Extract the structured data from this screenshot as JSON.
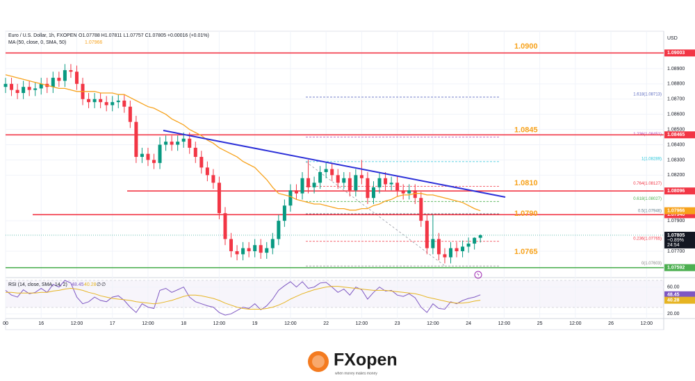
{
  "header": {
    "symbol": "Euro / U.S. Dollar, 1h, FXOPEN",
    "ohlc": "O1.07788 H1.07811 L1.07757 C1.07805 +0.00016 (+0.01%)",
    "currency": "USD"
  },
  "chart_data": {
    "type": "candlestick",
    "up_color": "#089981",
    "down_color": "#f23645",
    "ylim": [
      1.07563,
      1.09146
    ],
    "yticks": [
      {
        "value": 1.089,
        "label": "1.08900"
      },
      {
        "value": 1.088,
        "label": "1.08800"
      },
      {
        "value": 1.087,
        "label": "1.08700"
      },
      {
        "value": 1.086,
        "label": "1.08600"
      },
      {
        "value": 1.085,
        "label": "1.08500"
      },
      {
        "value": 1.084,
        "label": "1.08400"
      },
      {
        "value": 1.083,
        "label": "1.08300"
      },
      {
        "value": 1.082,
        "label": "1.08200"
      },
      {
        "value": 1.079,
        "label": "1.07900"
      },
      {
        "value": 1.077,
        "label": "1.07700"
      }
    ],
    "grid": true,
    "xlabels": [
      "00",
      "16",
      "12:00",
      "17",
      "12:00",
      "18",
      "12:00",
      "19",
      "12:00",
      "22",
      "12:00",
      "23",
      "12:00",
      "24",
      "12:00",
      "25",
      "12:00",
      "26",
      "12:00"
    ],
    "candles": [
      [
        1.0878,
        1.0884,
        1.0874,
        1.088
      ],
      [
        1.088,
        1.0884,
        1.0872,
        1.0876
      ],
      [
        1.0876,
        1.088,
        1.087,
        1.0874
      ],
      [
        1.0874,
        1.0882,
        1.087,
        1.0878
      ],
      [
        1.0878,
        1.0882,
        1.0872,
        1.0876
      ],
      [
        1.0876,
        1.0881,
        1.0872,
        1.0877
      ],
      [
        1.0877,
        1.0884,
        1.0873,
        1.088
      ],
      [
        1.088,
        1.0884,
        1.0874,
        1.0878
      ],
      [
        1.0878,
        1.0888,
        1.0874,
        1.0884
      ],
      [
        1.0884,
        1.0888,
        1.0878,
        1.0882
      ],
      [
        1.0882,
        1.0893,
        1.0878,
        1.0889
      ],
      [
        1.0889,
        1.0893,
        1.0884,
        1.0888
      ],
      [
        1.0888,
        1.0892,
        1.0876,
        1.088
      ],
      [
        1.088,
        1.0884,
        1.0866,
        1.087
      ],
      [
        1.087,
        1.0874,
        1.0864,
        1.0868
      ],
      [
        1.0868,
        1.0874,
        1.0864,
        1.087
      ],
      [
        1.087,
        1.0874,
        1.0864,
        1.0868
      ],
      [
        1.0868,
        1.0872,
        1.0862,
        1.0866
      ],
      [
        1.0866,
        1.0872,
        1.0862,
        1.0868
      ],
      [
        1.0868,
        1.0873,
        1.0864,
        1.0869
      ],
      [
        1.0869,
        1.0873,
        1.0861,
        1.0865
      ],
      [
        1.0865,
        1.0869,
        1.0851,
        1.0855
      ],
      [
        1.0855,
        1.0859,
        1.0828,
        1.0832
      ],
      [
        1.0832,
        1.0838,
        1.0828,
        1.0834
      ],
      [
        1.0834,
        1.0838,
        1.0826,
        1.083
      ],
      [
        1.083,
        1.0834,
        1.0824,
        1.0828
      ],
      [
        1.0828,
        1.0845,
        1.0824,
        1.084
      ],
      [
        1.084,
        1.0846,
        1.0836,
        1.0842
      ],
      [
        1.0842,
        1.0846,
        1.0836,
        1.084
      ],
      [
        1.084,
        1.0846,
        1.0836,
        1.0842
      ],
      [
        1.0842,
        1.0848,
        1.0838,
        1.0844
      ],
      [
        1.0844,
        1.0848,
        1.0834,
        1.0838
      ],
      [
        1.0838,
        1.0842,
        1.0828,
        1.0832
      ],
      [
        1.0832,
        1.0836,
        1.0821,
        1.0825
      ],
      [
        1.0825,
        1.0829,
        1.0816,
        1.082
      ],
      [
        1.082,
        1.0824,
        1.0811,
        1.0815
      ],
      [
        1.0815,
        1.0819,
        1.0791,
        1.0795
      ],
      [
        1.0795,
        1.0799,
        1.0774,
        1.0778
      ],
      [
        1.0778,
        1.0782,
        1.0766,
        1.077
      ],
      [
        1.077,
        1.0774,
        1.0764,
        1.0768
      ],
      [
        1.0768,
        1.0776,
        1.0764,
        1.0772
      ],
      [
        1.0772,
        1.0776,
        1.0766,
        1.077
      ],
      [
        1.077,
        1.0778,
        1.0766,
        1.0774
      ],
      [
        1.0774,
        1.0778,
        1.0765,
        1.0769
      ],
      [
        1.0769,
        1.0776,
        1.0765,
        1.0772
      ],
      [
        1.0772,
        1.0782,
        1.0768,
        1.0778
      ],
      [
        1.0778,
        1.0794,
        1.0774,
        1.079
      ],
      [
        1.079,
        1.0804,
        1.0786,
        1.08
      ],
      [
        1.08,
        1.0814,
        1.0796,
        1.081
      ],
      [
        1.081,
        1.0814,
        1.0804,
        1.0808
      ],
      [
        1.0808,
        1.0822,
        1.0804,
        1.0818
      ],
      [
        1.0818,
        1.083,
        1.0808,
        1.0812
      ],
      [
        1.0812,
        1.0819,
        1.0808,
        1.0815
      ],
      [
        1.0815,
        1.0826,
        1.0811,
        1.0822
      ],
      [
        1.0822,
        1.0828,
        1.0818,
        1.0824
      ],
      [
        1.0824,
        1.0828,
        1.0816,
        1.082
      ],
      [
        1.082,
        1.0824,
        1.0811,
        1.0815
      ],
      [
        1.0815,
        1.0822,
        1.0811,
        1.0818
      ],
      [
        1.0818,
        1.0822,
        1.0806,
        1.081
      ],
      [
        1.081,
        1.0824,
        1.0806,
        1.082
      ],
      [
        1.082,
        1.083,
        1.0814,
        1.0818
      ],
      [
        1.0818,
        1.0822,
        1.0801,
        1.0805
      ],
      [
        1.0805,
        1.0816,
        1.0801,
        1.0812
      ],
      [
        1.0812,
        1.0822,
        1.0808,
        1.0818
      ],
      [
        1.0818,
        1.0822,
        1.081,
        1.0814
      ],
      [
        1.0814,
        1.0819,
        1.081,
        1.0815
      ],
      [
        1.0815,
        1.0819,
        1.0806,
        1.081
      ],
      [
        1.081,
        1.0814,
        1.0804,
        1.0808
      ],
      [
        1.0808,
        1.0814,
        1.0804,
        1.081
      ],
      [
        1.081,
        1.0814,
        1.0801,
        1.0805
      ],
      [
        1.0805,
        1.0809,
        1.0786,
        1.079
      ],
      [
        1.079,
        1.0794,
        1.0768,
        1.0772
      ],
      [
        1.0772,
        1.0794,
        1.0768,
        1.0778
      ],
      [
        1.0778,
        1.0782,
        1.0764,
        1.0768
      ],
      [
        1.0768,
        1.0772,
        1.0762,
        1.0766
      ],
      [
        1.0766,
        1.0776,
        1.0762,
        1.0772
      ],
      [
        1.0772,
        1.0776,
        1.0766,
        1.077
      ],
      [
        1.077,
        1.0777,
        1.0766,
        1.0773
      ],
      [
        1.0773,
        1.0779,
        1.0769,
        1.0775
      ],
      [
        1.0775,
        1.07792,
        1.07711,
        1.07788
      ],
      [
        1.07788,
        1.07811,
        1.07757,
        1.07805
      ]
    ],
    "ma": {
      "name": "MA (50, close, 0, SMA, 50)",
      "color": "#f7a21b",
      "values": [
        1.0886,
        1.0885,
        1.0884,
        1.0883,
        1.0882,
        1.0881,
        1.088,
        1.0879,
        1.0878,
        1.0877,
        1.0877,
        1.0876,
        1.0875,
        1.0875,
        1.0875,
        1.0875,
        1.0874,
        1.0874,
        1.0874,
        1.0873,
        1.0873,
        1.0871,
        1.0869,
        1.0867,
        1.0865,
        1.0864,
        1.0862,
        1.086,
        1.0857,
        1.0855,
        1.0853,
        1.085,
        1.0848,
        1.0846,
        1.0843,
        1.0841,
        1.0838,
        1.0836,
        1.0834,
        1.0832,
        1.0829,
        1.0827,
        1.0825,
        1.0821,
        1.0817,
        1.0812,
        1.0808,
        1.0807,
        1.0806,
        1.0804,
        1.0803,
        1.0802,
        1.0801,
        1.0801,
        1.08,
        1.0799,
        1.0798,
        1.0798,
        1.0797,
        1.0797,
        1.0798,
        1.0798,
        1.08,
        1.0801,
        1.0803,
        1.0804,
        1.0806,
        1.0807,
        1.0807,
        1.0808,
        1.0808,
        1.0807,
        1.0807,
        1.0806,
        1.0805,
        1.0804,
        1.0803,
        1.0802,
        1.08,
        1.0798,
        1.07966
      ]
    },
    "levels": [
      {
        "value": 1.09003,
        "label": "1.09003",
        "color": "#f23645"
      },
      {
        "value": 1.08465,
        "label": "1.08465",
        "color": "#f23645"
      },
      {
        "value": 1.08096,
        "label": "1.08096",
        "color": "#f23645"
      },
      {
        "value": 1.0794,
        "label": "1.07940",
        "color": "#f23645"
      },
      {
        "value": 1.07592,
        "label": "1.07592",
        "color": "#4caf50"
      }
    ],
    "annotation_color": "#f7a21b",
    "annotations": [
      {
        "value": 1.09,
        "label": "1.0900"
      },
      {
        "value": 1.0845,
        "label": "1.0845"
      },
      {
        "value": 1.081,
        "label": "1.0810"
      },
      {
        "value": 1.079,
        "label": "1.0790"
      },
      {
        "value": 1.0765,
        "label": "1.0765"
      }
    ],
    "fib": [
      {
        "value": 1.08713,
        "label": "1.618(1.08713)",
        "color": "#5c6bc0"
      },
      {
        "value": 1.08451,
        "label": "1.236(1.08451)",
        "color": "#ab47bc"
      },
      {
        "value": 1.08289,
        "label": "1(1.08289)",
        "color": "#26c6da"
      },
      {
        "value": 1.08127,
        "label": "0.764(1.08127)",
        "color": "#f23645"
      },
      {
        "value": 1.08027,
        "label": "0.618(1.08027)",
        "color": "#4caf50"
      },
      {
        "value": 1.07946,
        "label": "0.5(1.07946)",
        "color": "#607d8b"
      },
      {
        "value": 1.07765,
        "label": "0.236(1.07765)",
        "color": "#f23645"
      },
      {
        "value": 1.07603,
        "label": "0(1.07603)",
        "color": "#888888"
      }
    ],
    "last": {
      "change": "−0.89%",
      "countdown": "24:54"
    }
  },
  "rsi": {
    "type": "line",
    "name": "RSI (14, close, SMA, 14, 2)",
    "na_labels": [
      "∅",
      "∅"
    ],
    "ylim": [
      14,
      71
    ],
    "yticks": [
      {
        "value": 60,
        "label": "60.00"
      },
      {
        "value": 20,
        "label": "20.00"
      }
    ],
    "series": [
      {
        "color": "#7e57c2",
        "values": [
          55,
          48,
          45,
          56,
          50,
          52,
          58,
          52,
          64,
          60,
          70,
          66,
          45,
          35,
          38,
          45,
          40,
          38,
          45,
          47,
          40,
          30,
          22,
          35,
          30,
          28,
          55,
          58,
          52,
          56,
          60,
          45,
          38,
          35,
          32,
          30,
          22,
          18,
          20,
          25,
          30,
          28,
          35,
          26,
          32,
          42,
          55,
          62,
          68,
          60,
          68,
          58,
          60,
          66,
          67,
          60,
          52,
          57,
          48,
          60,
          56,
          42,
          52,
          60,
          54,
          55,
          48,
          46,
          50,
          44,
          30,
          22,
          35,
          28,
          27,
          38,
          35,
          40,
          43,
          45,
          48.45
        ]
      },
      {
        "color": "#e6b422",
        "values": [
          52,
          52,
          51,
          51,
          51,
          51,
          52,
          52,
          54,
          55,
          57,
          58,
          57,
          55,
          52,
          50,
          47,
          45,
          43,
          42,
          41,
          40,
          38,
          37,
          36,
          35,
          36,
          38,
          40,
          43,
          46,
          48,
          48,
          47,
          45,
          43,
          40,
          36,
          33,
          30,
          28,
          27,
          27,
          27,
          28,
          30,
          33,
          37,
          42,
          46,
          50,
          53,
          56,
          58,
          60,
          61,
          61,
          60,
          59,
          58,
          57,
          56,
          55,
          55,
          55,
          54,
          53,
          52,
          51,
          50,
          48,
          45,
          43,
          41,
          39,
          37,
          36,
          36,
          37,
          39,
          40.28
        ]
      }
    ]
  },
  "logo": {
    "brand": "FXopen",
    "tagline": "when money makes money"
  }
}
